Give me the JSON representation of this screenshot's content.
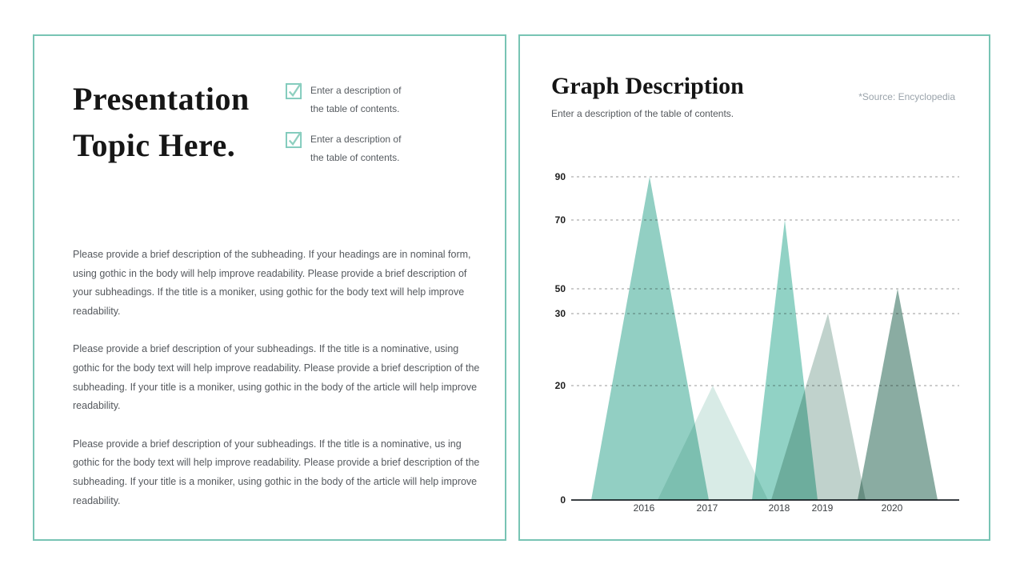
{
  "theme": {
    "accent_border": "#78c4b4",
    "checkbox_color": "#7fcabb",
    "body_text_color": "#55595e",
    "title_color": "#161616"
  },
  "left_panel": {
    "title_line1": "Presentation",
    "title_line2": "Topic Here.",
    "checklist": [
      {
        "icon": "checkbox-checked-icon",
        "line1": "Enter a description of",
        "line2": "the table of contents."
      },
      {
        "icon": "checkbox-checked-icon",
        "line1": "Enter a description of",
        "line2": "the table of contents."
      }
    ],
    "paragraphs": [
      "Please provide a brief description of the subheading. If your headings are in nominal form, using gothic in the body will help improve readability. Please provide a brief description of your subheadings. If the title is a moniker, using gothic for the body text will help improve readability.",
      "Please provide a brief description of your subheadings. If the title is a nominative, using gothic for the body text will help improve readability. Please provide a brief description of the subheading. If your title is a moniker, using gothic in the body of the article will help improve readability.",
      "Please provide a brief description of your subheadings. If the title is a nominative, us ing gothic for the body text will help improve readability. Please provide a brief description of the subheading. If your title is a moniker, using gothic in the body of the article will help improve readability."
    ]
  },
  "right_panel": {
    "description": "Enter a description of the table of contents."
  },
  "chart_data": {
    "type": "area",
    "shape": "triangle-peaks",
    "title": "Graph Description",
    "source": "*Source: Encyclopedia",
    "categories": [
      "2016",
      "2017",
      "2018",
      "2019",
      "2020"
    ],
    "values": [
      90,
      20,
      70,
      30,
      50
    ],
    "colors": [
      "#92cfc3",
      "#d8ebe6",
      "#91d2c5",
      "#c0d2cc",
      "#8aaca2"
    ],
    "y_ticks": [
      90,
      70,
      50,
      30,
      20,
      0
    ],
    "ylim": [
      0,
      90
    ],
    "xlabel": "",
    "ylabel": "",
    "grid": "dashed horizontal",
    "legend": "none",
    "y_axis_nonlinear": true,
    "overlap_blend": "multiply"
  }
}
